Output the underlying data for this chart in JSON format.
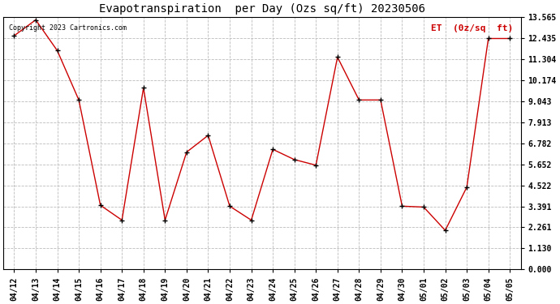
{
  "title": "Evapotranspiration  per Day (Ozs sq/ft) 20230506",
  "legend_label": "ET  (0z/sq  ft)",
  "copyright_text": "Copyright 2023 Cartronics.com",
  "line_color": "#cc0000",
  "marker_color": "#000000",
  "background_color": "#ffffff",
  "grid_color": "#bbbbbb",
  "dates": [
    "04/12",
    "04/13",
    "04/14",
    "04/15",
    "04/16",
    "04/17",
    "04/18",
    "04/19",
    "04/20",
    "04/21",
    "04/22",
    "04/23",
    "04/24",
    "04/25",
    "04/26",
    "04/27",
    "04/28",
    "04/29",
    "04/30",
    "05/01",
    "05/02",
    "05/03",
    "05/04",
    "05/05"
  ],
  "values": [
    12.55,
    13.4,
    11.75,
    9.1,
    3.45,
    2.65,
    9.75,
    2.65,
    6.3,
    7.2,
    3.4,
    2.65,
    6.45,
    5.9,
    5.6,
    11.4,
    9.1,
    9.1,
    3.4,
    3.35,
    2.1,
    4.42,
    12.4,
    12.4
  ],
  "yticks": [
    0.0,
    1.13,
    2.261,
    3.391,
    4.522,
    5.652,
    6.782,
    7.913,
    9.043,
    10.174,
    11.304,
    12.435,
    13.565
  ],
  "ylim": [
    0.0,
    13.565
  ],
  "title_fontsize": 10,
  "tick_fontsize": 7,
  "legend_fontsize": 8,
  "copyright_fontsize": 6,
  "linewidth": 1.0,
  "markersize": 5
}
